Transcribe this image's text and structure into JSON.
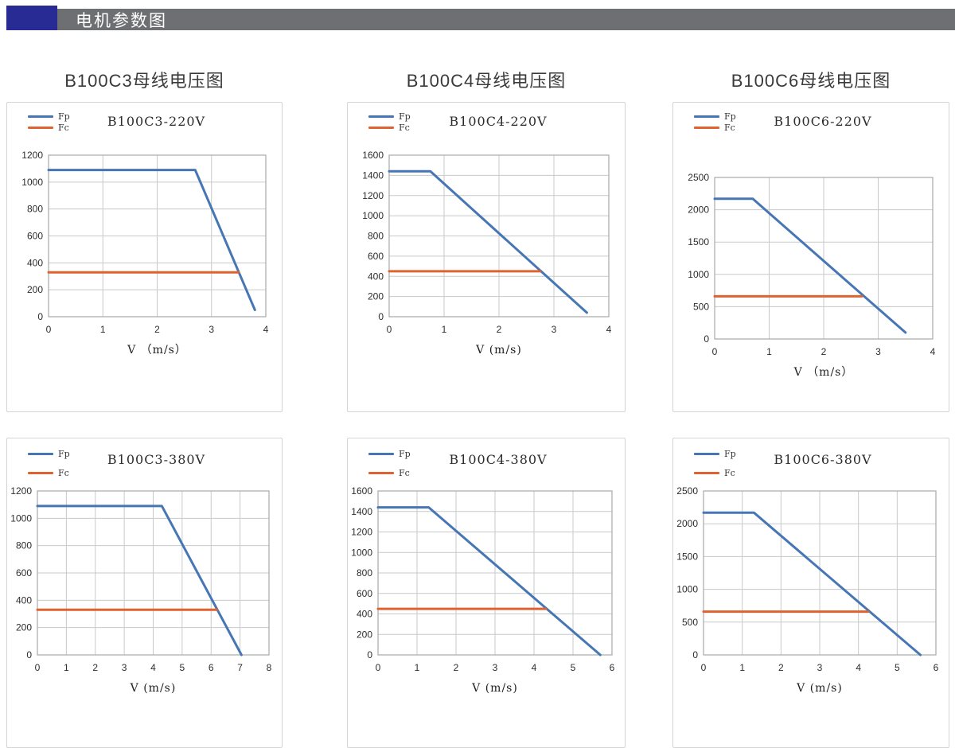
{
  "header": {
    "title": "电机参数图"
  },
  "columns": [
    {
      "title": "B100C3母线电压图"
    },
    {
      "title": "B100C4母线电压图"
    },
    {
      "title": "B100C6母线电压图"
    }
  ],
  "colors": {
    "fp": "#4676b4",
    "fc": "#df6230",
    "grid": "#c7caca",
    "axis": "#a6a9ab",
    "header_bar": "#6e6f73",
    "header_block": "#272b93"
  },
  "chart_data": [
    {
      "type": "line",
      "title": "B100C3-220V",
      "xlabel": "V （m/s）",
      "xlim": [
        0,
        4
      ],
      "xtick_step": 1,
      "ylim": [
        0,
        1200
      ],
      "ytick_step": 200,
      "grid": true,
      "legend_position": "top-left",
      "series": [
        {
          "name": "Fp",
          "color_key": "fp",
          "points": [
            [
              0,
              1090
            ],
            [
              2.7,
              1090
            ],
            [
              3.8,
              50
            ]
          ]
        },
        {
          "name": "Fc",
          "color_key": "fc",
          "points": [
            [
              0,
              330
            ],
            [
              3.5,
              330
            ]
          ]
        }
      ]
    },
    {
      "type": "line",
      "title": "B100C4-220V",
      "xlabel": "V (m/s)",
      "xlim": [
        0,
        4
      ],
      "xtick_step": 1,
      "ylim": [
        0,
        1600
      ],
      "ytick_step": 200,
      "grid": true,
      "legend_position": "top-left",
      "series": [
        {
          "name": "Fp",
          "color_key": "fp",
          "points": [
            [
              0,
              1440
            ],
            [
              0.75,
              1440
            ],
            [
              3.6,
              40
            ]
          ]
        },
        {
          "name": "Fc",
          "color_key": "fc",
          "points": [
            [
              0,
              450
            ],
            [
              2.75,
              450
            ]
          ]
        }
      ]
    },
    {
      "type": "line",
      "title": "B100C6-220V",
      "xlabel": "V （m/s）",
      "xlim": [
        0,
        4
      ],
      "xtick_step": 1,
      "ylim": [
        0,
        2500
      ],
      "ytick_step": 500,
      "grid": true,
      "legend_position": "top-left",
      "series": [
        {
          "name": "Fp",
          "color_key": "fp",
          "points": [
            [
              0,
              2170
            ],
            [
              0.7,
              2170
            ],
            [
              3.5,
              100
            ]
          ]
        },
        {
          "name": "Fc",
          "color_key": "fc",
          "points": [
            [
              0,
              660
            ],
            [
              2.7,
              660
            ]
          ]
        }
      ]
    },
    {
      "type": "line",
      "title": "B100C3-380V",
      "xlabel": "V (m/s)",
      "xlim": [
        0,
        8
      ],
      "xtick_step": 1,
      "ylim": [
        0,
        1200
      ],
      "ytick_step": 200,
      "grid": true,
      "legend_position": "top-left",
      "series": [
        {
          "name": "Fp",
          "color_key": "fp",
          "points": [
            [
              0,
              1090
            ],
            [
              4.3,
              1090
            ],
            [
              7.05,
              0
            ]
          ]
        },
        {
          "name": "Fc",
          "color_key": "fc",
          "points": [
            [
              0,
              330
            ],
            [
              6.2,
              330
            ]
          ]
        }
      ]
    },
    {
      "type": "line",
      "title": "B100C4-380V",
      "xlabel": "V (m/s)",
      "xlim": [
        0,
        6
      ],
      "xtick_step": 1,
      "ylim": [
        0,
        1600
      ],
      "ytick_step": 200,
      "grid": true,
      "legend_position": "top-left",
      "series": [
        {
          "name": "Fp",
          "color_key": "fp",
          "points": [
            [
              0,
              1440
            ],
            [
              1.3,
              1440
            ],
            [
              5.7,
              0
            ]
          ]
        },
        {
          "name": "Fc",
          "color_key": "fc",
          "points": [
            [
              0,
              450
            ],
            [
              4.3,
              450
            ]
          ]
        }
      ]
    },
    {
      "type": "line",
      "title": "B100C6-380V",
      "xlabel": "V (m/s)",
      "xlim": [
        0,
        6
      ],
      "xtick_step": 1,
      "ylim": [
        0,
        2500
      ],
      "ytick_step": 500,
      "grid": true,
      "legend_position": "top-left",
      "series": [
        {
          "name": "Fp",
          "color_key": "fp",
          "points": [
            [
              0,
              2170
            ],
            [
              1.3,
              2170
            ],
            [
              5.6,
              0
            ]
          ]
        },
        {
          "name": "Fc",
          "color_key": "fc",
          "points": [
            [
              0,
              660
            ],
            [
              4.25,
              660
            ]
          ]
        }
      ]
    }
  ]
}
